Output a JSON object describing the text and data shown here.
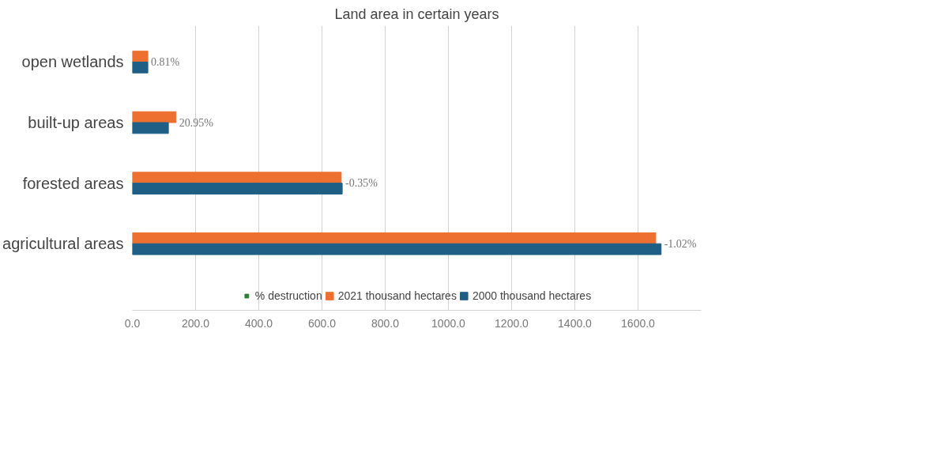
{
  "chart_data": {
    "type": "bar",
    "orientation": "horizontal",
    "title": "Land area in certain years",
    "categories": [
      "open wetlands",
      "built-up areas",
      "forested areas",
      "agricultural areas"
    ],
    "series": [
      {
        "name": "% destruction",
        "color": "#2e7d32",
        "values": [
          null,
          null,
          null,
          null
        ]
      },
      {
        "name": "2021 thousand hectares",
        "color": "#ed7031",
        "values": [
          49,
          138,
          661,
          1656
        ]
      },
      {
        "name": "2000 thousand hectares",
        "color": "#1f5f86",
        "values": [
          49,
          114,
          664,
          1673
        ]
      }
    ],
    "annotations": [
      {
        "text": "0.81%",
        "x": 49,
        "y": "open wetlands"
      },
      {
        "text": "20.95%",
        "x": 138,
        "y": "built-up areas"
      },
      {
        "text": "-0.35%",
        "x": 664,
        "y": "forested areas"
      },
      {
        "text": "-1.02%",
        "x": 1673,
        "y": "agricultural areas"
      }
    ],
    "xlim": [
      0,
      1800
    ],
    "xticks": [
      {
        "value": 0,
        "label": "0.0"
      },
      {
        "value": 200,
        "label": "200.0"
      },
      {
        "value": 400,
        "label": "400.0"
      },
      {
        "value": 600,
        "label": "600.0"
      },
      {
        "value": 800,
        "label": "800.0"
      },
      {
        "value": 1000,
        "label": "1000.0"
      },
      {
        "value": 1200,
        "label": "1200.0"
      },
      {
        "value": 1400,
        "label": "1400.0"
      },
      {
        "value": 1600,
        "label": "1600.0"
      }
    ],
    "grid": "x",
    "legend": "bottom"
  }
}
